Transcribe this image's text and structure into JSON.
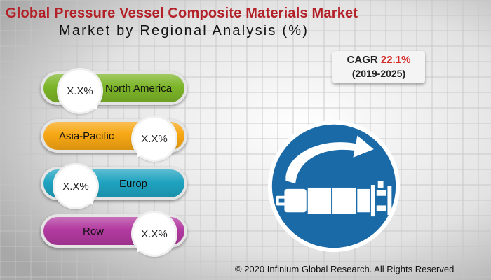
{
  "title": "Global Pressure Vessel Composite Materials Market",
  "subtitle": "Market by Regional Analysis (%)",
  "cagr": {
    "label": "CAGR",
    "value": "22.1%",
    "period": "(2019-2025)"
  },
  "chart_data": {
    "type": "table",
    "categories": [
      "North America",
      "Asia-Pacific",
      "Europ",
      "Row"
    ],
    "values": [
      "X.X%",
      "X.X%",
      "X.X%",
      "X.X%"
    ],
    "colors": [
      "#7cb528",
      "#f7a713",
      "#1fa3c0",
      "#b23aa0"
    ]
  },
  "regions": [
    {
      "name": "North America",
      "value": "X.X%",
      "color": "#7cb528"
    },
    {
      "name": "Asia-Pacific",
      "value": "X.X%",
      "color": "#f7a713"
    },
    {
      "name": "Europ",
      "value": "X.X%",
      "color": "#1fa3c0"
    },
    {
      "name": "Row",
      "value": "X.X%",
      "color": "#b23aa0"
    }
  ],
  "icon": "pressure-vessel-rotate-icon",
  "footer": "© 2020 Infinium Global Research. All Rights Reserved"
}
